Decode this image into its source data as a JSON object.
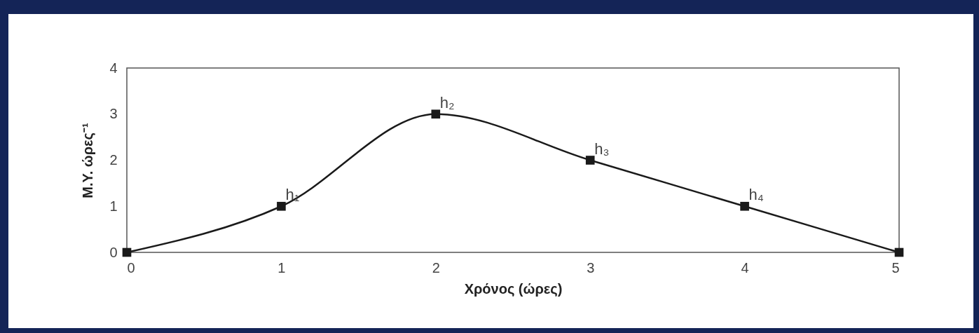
{
  "chart_data": {
    "type": "line",
    "xlabel": "Χρόνος (ώρες)",
    "ylabel": "M.Y. ώρες⁻¹",
    "x": [
      0,
      1,
      2,
      3,
      4,
      5
    ],
    "series": [
      {
        "color": "#1a1a1a",
        "values": [
          0,
          1,
          3,
          2,
          1,
          0
        ]
      }
    ],
    "xlim": [
      0,
      5
    ],
    "xticks": [
      0,
      1,
      2,
      3,
      4,
      5
    ],
    "ylim": [
      0,
      4
    ],
    "yticks": [
      0,
      1,
      2,
      3,
      4
    ],
    "grid": false,
    "marker": "square",
    "line_style": "solid",
    "annotations": [
      {
        "text": "h₁",
        "x": 1,
        "y": 1
      },
      {
        "text": "h₂",
        "x": 2,
        "y": 3
      },
      {
        "text": "h₃",
        "x": 3,
        "y": 2
      },
      {
        "text": "h₄",
        "x": 4,
        "y": 1
      }
    ]
  }
}
